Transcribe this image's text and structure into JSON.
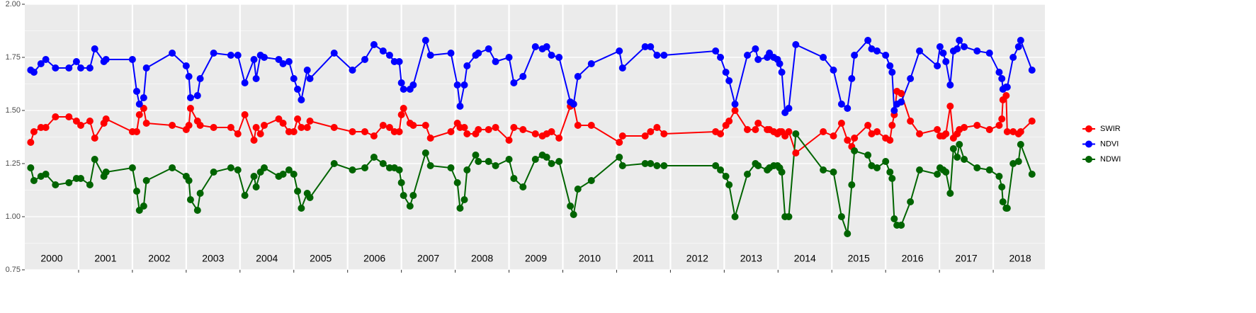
{
  "chart_data": {
    "type": "line",
    "x": [
      2000.11,
      2000.17,
      2000.3,
      2000.39,
      2000.57,
      2000.82,
      2000.96,
      2001.04,
      2001.21,
      2001.3,
      2001.47,
      2001.51,
      2002.0,
      2002.08,
      2002.13,
      2002.21,
      2002.26,
      2002.74,
      2003.0,
      2003.05,
      2003.08,
      2003.21,
      2003.26,
      2003.51,
      2003.83,
      2003.96,
      2004.09,
      2004.26,
      2004.3,
      2004.38,
      2004.45,
      2004.72,
      2004.8,
      2004.91,
      2005.0,
      2005.07,
      2005.14,
      2005.25,
      2005.3,
      2005.75,
      2006.09,
      2006.32,
      2006.49,
      2006.66,
      2006.78,
      2006.87,
      2006.96,
      2007.0,
      2007.04,
      2007.16,
      2007.22,
      2007.45,
      2007.54,
      2007.92,
      2008.04,
      2008.09,
      2008.17,
      2008.22,
      2008.38,
      2008.43,
      2008.62,
      2008.75,
      2009.0,
      2009.09,
      2009.26,
      2009.49,
      2009.62,
      2009.7,
      2009.79,
      2009.93,
      2010.14,
      2010.2,
      2010.28,
      2010.53,
      2011.05,
      2011.11,
      2011.53,
      2011.63,
      2011.75,
      2011.88,
      2012.84,
      2012.93,
      2013.03,
      2013.09,
      2013.2,
      2013.43,
      2013.58,
      2013.63,
      2013.8,
      2013.84,
      2013.92,
      2013.99,
      2014.03,
      2014.07,
      2014.13,
      2014.2,
      2014.33,
      2014.84,
      2015.03,
      2015.18,
      2015.29,
      2015.37,
      2015.42,
      2015.67,
      2015.74,
      2015.84,
      2016.0,
      2016.08,
      2016.12,
      2016.16,
      2016.21,
      2016.29,
      2016.46,
      2016.63,
      2016.96,
      2017.01,
      2017.07,
      2017.12,
      2017.2,
      2017.26,
      2017.33,
      2017.37,
      2017.46,
      2017.7,
      2017.93,
      2018.11,
      2018.16,
      2018.18,
      2018.24,
      2018.26,
      2018.37,
      2018.47,
      2018.51,
      2018.72
    ],
    "series": [
      {
        "name": "SWIR",
        "color": "#ff0000",
        "values": [
          1.35,
          1.4,
          1.42,
          1.42,
          1.47,
          1.47,
          1.45,
          1.43,
          1.45,
          1.37,
          1.44,
          1.46,
          1.4,
          1.4,
          1.48,
          1.51,
          1.44,
          1.43,
          1.41,
          1.43,
          1.51,
          1.45,
          1.43,
          1.42,
          1.42,
          1.39,
          1.48,
          1.36,
          1.42,
          1.39,
          1.43,
          1.46,
          1.44,
          1.4,
          1.4,
          1.46,
          1.42,
          1.42,
          1.45,
          1.42,
          1.4,
          1.4,
          1.38,
          1.43,
          1.42,
          1.4,
          1.4,
          1.48,
          1.51,
          1.44,
          1.43,
          1.43,
          1.37,
          1.4,
          1.44,
          1.42,
          1.42,
          1.39,
          1.39,
          1.41,
          1.41,
          1.42,
          1.36,
          1.42,
          1.41,
          1.39,
          1.38,
          1.39,
          1.4,
          1.37,
          1.52,
          1.53,
          1.43,
          1.43,
          1.35,
          1.38,
          1.38,
          1.4,
          1.42,
          1.39,
          1.4,
          1.39,
          1.43,
          1.45,
          1.5,
          1.41,
          1.41,
          1.44,
          1.41,
          1.41,
          1.4,
          1.39,
          1.4,
          1.4,
          1.38,
          1.4,
          1.3,
          1.4,
          1.38,
          1.44,
          1.36,
          1.33,
          1.37,
          1.43,
          1.39,
          1.4,
          1.37,
          1.36,
          1.43,
          1.48,
          1.59,
          1.58,
          1.45,
          1.39,
          1.41,
          1.38,
          1.38,
          1.39,
          1.52,
          1.37,
          1.39,
          1.41,
          1.42,
          1.43,
          1.41,
          1.43,
          1.46,
          1.55,
          1.57,
          1.4,
          1.4,
          1.39,
          1.4,
          1.45
        ]
      },
      {
        "name": "NDVI",
        "color": "#0000ff",
        "values": [
          1.69,
          1.68,
          1.72,
          1.74,
          1.7,
          1.7,
          1.73,
          1.7,
          1.7,
          1.79,
          1.73,
          1.74,
          1.74,
          1.59,
          1.53,
          1.56,
          1.7,
          1.77,
          1.71,
          1.66,
          1.56,
          1.57,
          1.65,
          1.77,
          1.76,
          1.76,
          1.63,
          1.74,
          1.65,
          1.76,
          1.75,
          1.74,
          1.72,
          1.73,
          1.65,
          1.6,
          1.55,
          1.69,
          1.65,
          1.77,
          1.69,
          1.74,
          1.81,
          1.78,
          1.76,
          1.73,
          1.73,
          1.63,
          1.6,
          1.6,
          1.62,
          1.83,
          1.76,
          1.77,
          1.62,
          1.52,
          1.62,
          1.71,
          1.76,
          1.77,
          1.79,
          1.73,
          1.75,
          1.63,
          1.66,
          1.8,
          1.79,
          1.8,
          1.76,
          1.75,
          1.54,
          1.53,
          1.66,
          1.72,
          1.78,
          1.7,
          1.8,
          1.8,
          1.76,
          1.76,
          1.78,
          1.75,
          1.68,
          1.64,
          1.53,
          1.76,
          1.79,
          1.74,
          1.75,
          1.77,
          1.75,
          1.74,
          1.72,
          1.68,
          1.49,
          1.51,
          1.81,
          1.75,
          1.69,
          1.53,
          1.51,
          1.65,
          1.76,
          1.83,
          1.79,
          1.78,
          1.76,
          1.71,
          1.68,
          1.5,
          1.53,
          1.54,
          1.65,
          1.78,
          1.71,
          1.8,
          1.77,
          1.73,
          1.62,
          1.78,
          1.79,
          1.83,
          1.8,
          1.78,
          1.77,
          1.68,
          1.65,
          1.6,
          1.61,
          1.61,
          1.75,
          1.8,
          1.83,
          1.69
        ]
      },
      {
        "name": "NDWI",
        "color": "#006400",
        "values": [
          1.23,
          1.17,
          1.19,
          1.2,
          1.15,
          1.16,
          1.18,
          1.18,
          1.15,
          1.27,
          1.19,
          1.21,
          1.23,
          1.12,
          1.03,
          1.05,
          1.17,
          1.23,
          1.19,
          1.17,
          1.08,
          1.03,
          1.11,
          1.21,
          1.23,
          1.22,
          1.1,
          1.19,
          1.14,
          1.21,
          1.23,
          1.19,
          1.2,
          1.22,
          1.2,
          1.12,
          1.04,
          1.11,
          1.09,
          1.25,
          1.22,
          1.23,
          1.28,
          1.25,
          1.23,
          1.23,
          1.22,
          1.16,
          1.1,
          1.05,
          1.1,
          1.3,
          1.24,
          1.23,
          1.16,
          1.04,
          1.08,
          1.22,
          1.29,
          1.26,
          1.26,
          1.24,
          1.27,
          1.18,
          1.14,
          1.27,
          1.29,
          1.28,
          1.25,
          1.26,
          1.05,
          1.01,
          1.13,
          1.17,
          1.28,
          1.24,
          1.25,
          1.25,
          1.24,
          1.24,
          1.24,
          1.22,
          1.19,
          1.15,
          1.0,
          1.2,
          1.25,
          1.24,
          1.22,
          1.23,
          1.24,
          1.24,
          1.23,
          1.21,
          1.0,
          1.0,
          1.39,
          1.22,
          1.21,
          1.0,
          0.92,
          1.15,
          1.31,
          1.29,
          1.24,
          1.23,
          1.26,
          1.21,
          1.18,
          0.99,
          0.96,
          0.96,
          1.07,
          1.22,
          1.2,
          1.23,
          1.22,
          1.21,
          1.11,
          1.32,
          1.28,
          1.34,
          1.27,
          1.23,
          1.22,
          1.19,
          1.14,
          1.07,
          1.04,
          1.04,
          1.25,
          1.26,
          1.34,
          1.2
        ]
      }
    ],
    "year_labels": [
      "2000",
      "2001",
      "2002",
      "2003",
      "2004",
      "2005",
      "2006",
      "2007",
      "2008",
      "2009",
      "2010",
      "2011",
      "2012",
      "2013",
      "2014",
      "2015",
      "2016",
      "2017",
      "2018"
    ],
    "xlim": [
      2000,
      2018.96
    ],
    "xticks": [
      2001,
      2002,
      2003,
      2004,
      2005,
      2006,
      2007,
      2008,
      2009,
      2010,
      2011,
      2012,
      2013,
      2014,
      2015,
      2016,
      2017,
      2018
    ],
    "ylim": [
      0.75,
      2.0
    ],
    "yticks": [
      {
        "value": 0.75,
        "label": "0.75"
      },
      {
        "value": 1.0,
        "label": "1.00"
      },
      {
        "value": 1.25,
        "label": "1.25"
      },
      {
        "value": 1.5,
        "label": "1.50"
      },
      {
        "value": 1.75,
        "label": "1.75"
      },
      {
        "value": 2.0,
        "label": "2.00"
      }
    ],
    "grid": true,
    "legend": "right"
  }
}
